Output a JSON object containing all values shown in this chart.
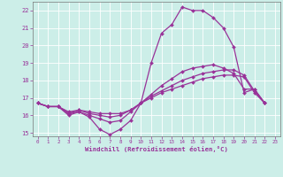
{
  "xlabel": "Windchill (Refroidissement éolien,°C)",
  "background_color": "#cceee8",
  "grid_color": "#ffffff",
  "line_color": "#993399",
  "x_hours": [
    0,
    1,
    2,
    3,
    4,
    5,
    6,
    7,
    8,
    9,
    10,
    11,
    12,
    13,
    14,
    15,
    16,
    17,
    18,
    19,
    20,
    21,
    22,
    23
  ],
  "curve1": [
    16.7,
    16.5,
    16.5,
    16.0,
    16.2,
    15.9,
    15.2,
    14.9,
    15.2,
    15.7,
    16.7,
    19.0,
    20.7,
    21.2,
    22.2,
    22.0,
    22.0,
    21.6,
    21.0,
    19.9,
    17.3,
    17.5,
    16.7,
    null
  ],
  "curve2": [
    16.7,
    16.5,
    16.5,
    16.1,
    16.2,
    16.0,
    15.8,
    15.6,
    15.7,
    16.2,
    16.7,
    17.2,
    17.7,
    18.1,
    18.5,
    18.7,
    18.8,
    18.9,
    18.7,
    18.4,
    17.5,
    17.5,
    16.7,
    null
  ],
  "curve3": [
    16.7,
    16.5,
    16.5,
    16.1,
    16.3,
    16.1,
    16.0,
    15.9,
    16.0,
    16.3,
    16.7,
    17.1,
    17.4,
    17.7,
    18.0,
    18.2,
    18.4,
    18.5,
    18.6,
    18.6,
    18.3,
    17.4,
    16.7,
    null
  ],
  "curve4": [
    16.7,
    16.5,
    16.5,
    16.2,
    16.3,
    16.2,
    16.1,
    16.1,
    16.1,
    16.3,
    16.7,
    17.0,
    17.3,
    17.5,
    17.7,
    17.9,
    18.1,
    18.2,
    18.3,
    18.3,
    18.2,
    17.3,
    16.7,
    null
  ],
  "ylim": [
    14.8,
    22.5
  ],
  "yticks": [
    15,
    16,
    17,
    18,
    19,
    20,
    21,
    22
  ],
  "marker": "D",
  "markersize": 2.0,
  "linewidth": 0.9
}
